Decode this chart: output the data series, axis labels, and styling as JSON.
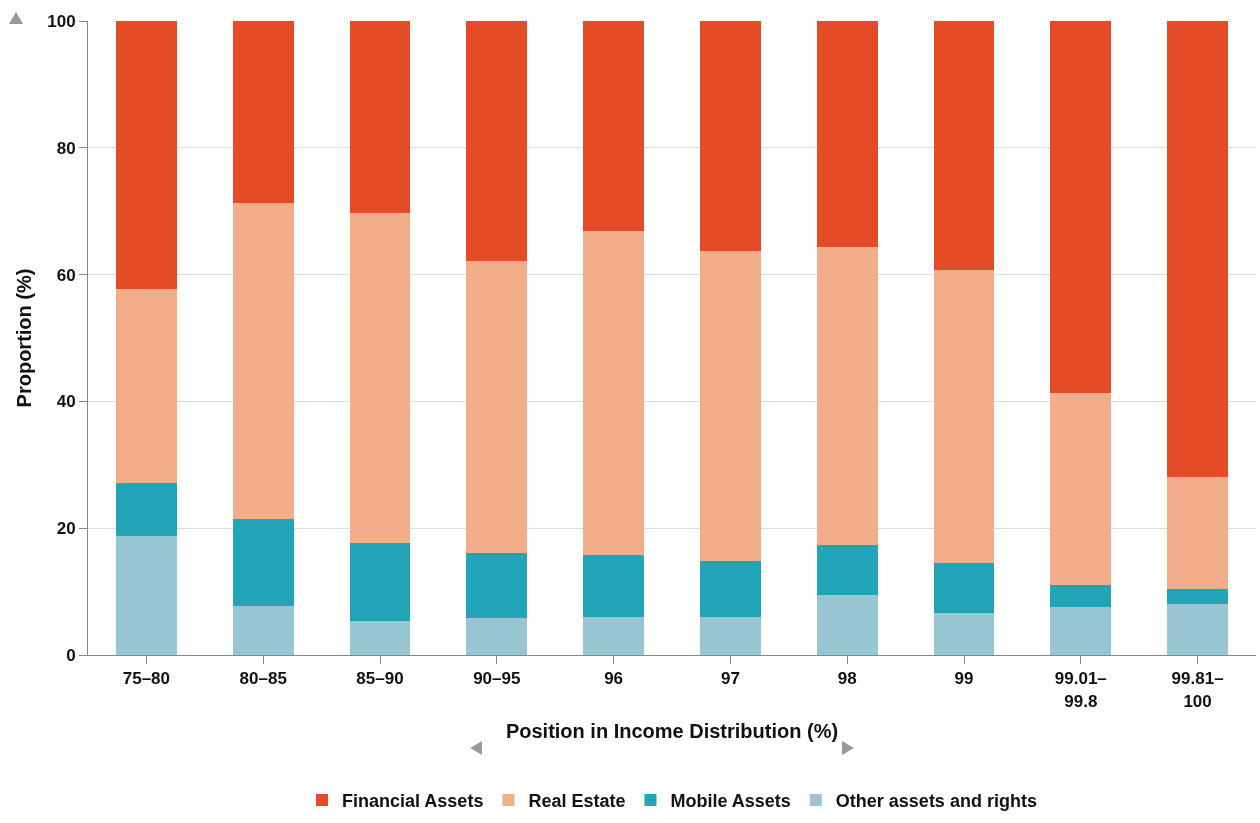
{
  "chart_data": {
    "type": "bar",
    "stacked": true,
    "xlabel": "Position in Income Distribution (%)",
    "ylabel": "Proportion (%)",
    "categories": [
      "75–80",
      "80–85",
      "85–90",
      "90–95",
      "96",
      "97",
      "98",
      "99",
      "99.01–\n99.8",
      "99.81–\n100"
    ],
    "series": [
      {
        "name": "Other assets and rights",
        "color": "#97c6d2",
        "values": [
          18.8,
          7.8,
          5.4,
          5.8,
          6.0,
          6.0,
          9.5,
          6.7,
          7.5,
          8.1
        ]
      },
      {
        "name": "Mobile Assets",
        "color": "#21a5b7",
        "values": [
          8.3,
          13.6,
          12.3,
          10.3,
          9.7,
          8.8,
          7.9,
          7.8,
          3.5,
          2.3
        ]
      },
      {
        "name": "Real Estate",
        "color": "#f2ad8a",
        "values": [
          30.7,
          49.9,
          52.0,
          46.1,
          51.1,
          49.0,
          47.0,
          46.2,
          30.3,
          17.7
        ]
      },
      {
        "name": "Financial Assets",
        "color": "#e34c26",
        "values": [
          42.2,
          28.7,
          30.3,
          37.8,
          33.2,
          36.2,
          35.6,
          39.3,
          58.7,
          71.9
        ]
      }
    ],
    "ylim": [
      0,
      100
    ],
    "yticks": [
      0,
      20,
      40,
      60,
      80,
      100
    ],
    "grid": "y",
    "legend": "bottom"
  }
}
